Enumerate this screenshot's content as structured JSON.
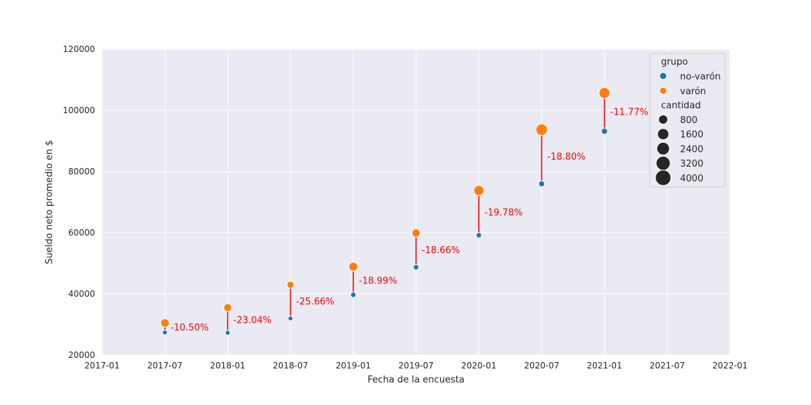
{
  "chart_data": {
    "type": "scatter",
    "title": "",
    "xlabel": "Fecha de la encuesta",
    "ylabel": "Sueldo neto promedio en $",
    "xlim": [
      "2017-01",
      "2022-01"
    ],
    "ylim": [
      20000,
      120000
    ],
    "x_ticks": [
      "2017-01",
      "2017-07",
      "2018-01",
      "2018-07",
      "2019-01",
      "2019-07",
      "2020-01",
      "2020-07",
      "2021-01",
      "2021-07",
      "2022-01"
    ],
    "y_ticks": [
      20000,
      40000,
      60000,
      80000,
      100000,
      120000
    ],
    "grid": true,
    "legend_position": "top-right",
    "series": [
      {
        "name": "no-varón",
        "color": "#1f77b4",
        "points": [
          {
            "x": "2017-07",
            "y": 27400,
            "cantidad": 400
          },
          {
            "x": "2018-01",
            "y": 27300,
            "cantidad": 400
          },
          {
            "x": "2018-07",
            "y": 32000,
            "cantidad": 400
          },
          {
            "x": "2019-01",
            "y": 39700,
            "cantidad": 600
          },
          {
            "x": "2019-07",
            "y": 48700,
            "cantidad": 600
          },
          {
            "x": "2020-01",
            "y": 59200,
            "cantidad": 600
          },
          {
            "x": "2020-07",
            "y": 76000,
            "cantidad": 800
          },
          {
            "x": "2021-01",
            "y": 93200,
            "cantidad": 900
          }
        ]
      },
      {
        "name": "varón",
        "color": "#ff7f0e",
        "points": [
          {
            "x": "2017-07",
            "y": 30500,
            "cantidad": 2100
          },
          {
            "x": "2018-01",
            "y": 35500,
            "cantidad": 1800
          },
          {
            "x": "2018-07",
            "y": 43000,
            "cantidad": 1300
          },
          {
            "x": "2019-01",
            "y": 48900,
            "cantidad": 2300
          },
          {
            "x": "2019-07",
            "y": 59900,
            "cantidad": 1900
          },
          {
            "x": "2020-01",
            "y": 73800,
            "cantidad": 3100
          },
          {
            "x": "2020-07",
            "y": 93700,
            "cantidad": 4100
          },
          {
            "x": "2021-01",
            "y": 105700,
            "cantidad": 3600
          }
        ]
      }
    ],
    "gap_annotations": [
      "-10.50%",
      "-23.04%",
      "-25.66%",
      "-18.99%",
      "-18.66%",
      "-19.78%",
      "-18.80%",
      "-11.77%"
    ],
    "gap_line_color": "#ff0000",
    "legend": {
      "hue_title": "grupo",
      "size_title": "cantidad",
      "size_entries": [
        800,
        1600,
        2400,
        3200,
        4000
      ]
    }
  }
}
